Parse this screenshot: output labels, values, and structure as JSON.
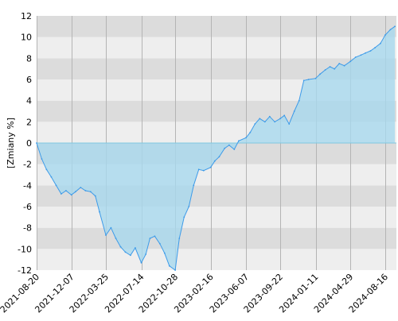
{
  "colors": {
    "band_dark": "#dcdcdc",
    "band_light": "#eeeeee",
    "area_fill": "#a8d8ee",
    "line": "#3d9be9",
    "zero_line": "#80c8e0",
    "grid_vertical": "#b4b4b4",
    "axis_text": "#000000"
  },
  "chart_data": {
    "type": "area",
    "title": "",
    "xlabel": "",
    "ylabel": "[Zmiany %]",
    "ylim": [
      -12,
      12
    ],
    "yticks": [
      -12,
      -10,
      -8,
      -6,
      -4,
      -2,
      0,
      2,
      4,
      6,
      8,
      10,
      12
    ],
    "xlim": [
      "2021-08-20",
      "2024-09-20"
    ],
    "xticks": [
      "2021-08-20",
      "2021-12-07",
      "2022-03-25",
      "2022-07-14",
      "2022-10-28",
      "2023-02-16",
      "2023-06-07",
      "2023-09-22",
      "2024-01-11",
      "2024-04-29",
      "2024-08-16"
    ],
    "grid": "horizontal alternating bands, vertical lines at x ticks",
    "legend": "none",
    "series": [
      {
        "x": [
          "2021-08-20",
          "2021-09-05",
          "2021-09-20",
          "2021-10-05",
          "2021-10-20",
          "2021-11-05",
          "2021-11-20",
          "2021-12-07",
          "2021-12-20",
          "2022-01-05",
          "2022-01-20",
          "2022-02-05",
          "2022-02-20",
          "2022-03-05",
          "2022-03-25",
          "2022-04-10",
          "2022-04-25",
          "2022-05-10",
          "2022-05-25",
          "2022-06-10",
          "2022-06-25",
          "2022-07-14",
          "2022-07-28",
          "2022-08-10",
          "2022-08-25",
          "2022-09-10",
          "2022-09-25",
          "2022-10-10",
          "2022-10-28",
          "2022-11-10",
          "2022-11-25",
          "2022-12-10",
          "2022-12-25",
          "2023-01-10",
          "2023-01-25",
          "2023-02-16",
          "2023-03-01",
          "2023-03-15",
          "2023-04-01",
          "2023-04-15",
          "2023-05-01",
          "2023-05-15",
          "2023-06-07",
          "2023-06-20",
          "2023-07-05",
          "2023-07-20",
          "2023-08-05",
          "2023-08-20",
          "2023-09-05",
          "2023-09-22",
          "2023-10-05",
          "2023-10-20",
          "2023-11-05",
          "2023-11-20",
          "2023-12-05",
          "2023-12-20",
          "2024-01-11",
          "2024-01-25",
          "2024-02-10",
          "2024-02-25",
          "2024-03-10",
          "2024-03-25",
          "2024-04-10",
          "2024-04-29",
          "2024-05-15",
          "2024-06-01",
          "2024-06-15",
          "2024-07-01",
          "2024-07-15",
          "2024-08-01",
          "2024-08-16",
          "2024-09-01",
          "2024-09-15"
        ],
        "values": [
          0,
          -1.5,
          -2.5,
          -3.2,
          -4.0,
          -4.8,
          -4.5,
          -4.9,
          -4.6,
          -4.2,
          -4.5,
          -4.6,
          -5.0,
          -6.5,
          -8.7,
          -8.0,
          -9.0,
          -9.8,
          -10.3,
          -10.6,
          -9.9,
          -11.3,
          -10.5,
          -9.0,
          -8.8,
          -9.5,
          -10.4,
          -11.6,
          -12.0,
          -9.0,
          -7.0,
          -6.0,
          -4.0,
          -2.5,
          -2.6,
          -2.3,
          -1.7,
          -1.3,
          -0.5,
          -0.2,
          -0.6,
          0.2,
          0.5,
          1.0,
          1.8,
          2.3,
          2.0,
          2.5,
          2.0,
          2.3,
          2.6,
          1.8,
          3.0,
          4.0,
          5.9,
          6.0,
          6.1,
          6.5,
          6.9,
          7.2,
          7.0,
          7.5,
          7.3,
          7.7,
          8.1,
          8.3,
          8.5,
          8.7,
          9.0,
          9.4,
          10.2,
          10.7,
          11.0
        ]
      }
    ]
  }
}
